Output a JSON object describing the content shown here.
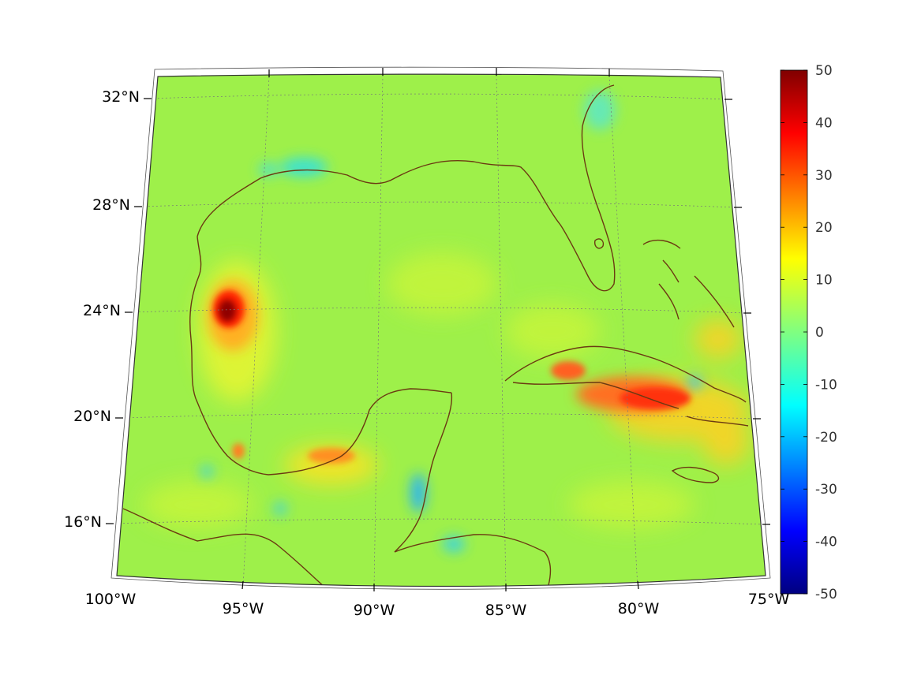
{
  "map": {
    "latitude_labels": [
      "32°N",
      "28°N",
      "24°N",
      "20°N",
      "16°N"
    ],
    "longitude_labels": [
      "100°W",
      "95°W",
      "90°W",
      "85°W",
      "80°W",
      "75°W"
    ],
    "colors": {
      "background_field": "#9ef04a",
      "coastline": "#6b3a12",
      "grid": "#777777",
      "frame": "#333333"
    }
  },
  "colorbar": {
    "tick_labels": [
      "50",
      "40",
      "30",
      "20",
      "10",
      "0",
      "-10",
      "-20",
      "-30",
      "-40",
      "-50"
    ],
    "range": [
      -50,
      50
    ],
    "colormap": "jet"
  }
}
